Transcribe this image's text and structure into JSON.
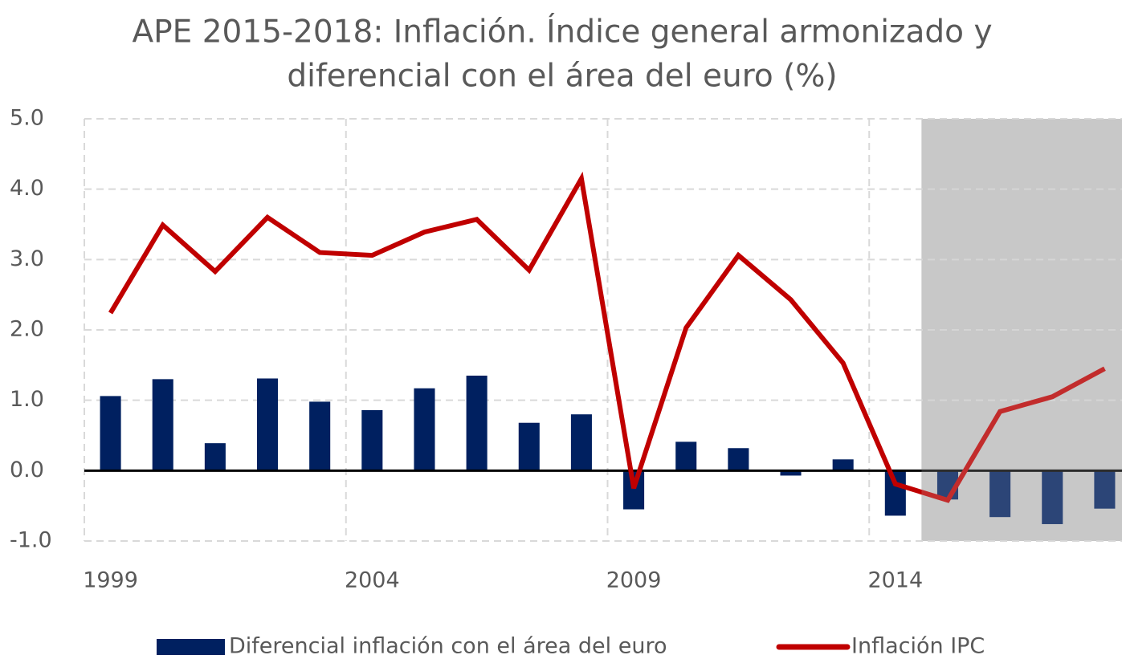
{
  "chart_data": {
    "type": "bar-line",
    "title": [
      "APE 2015-2018: Inflación. Índice general armonizado y",
      "diferencial con el área del euro (%)"
    ],
    "x": [
      1999,
      2000,
      2001,
      2002,
      2003,
      2004,
      2005,
      2006,
      2007,
      2008,
      2009,
      2010,
      2011,
      2012,
      2013,
      2014,
      2015,
      2016,
      2017,
      2018
    ],
    "series": [
      {
        "name": "Diferencial inflación con el área del euro",
        "type": "bar",
        "color": "#002060",
        "values": [
          1.06,
          1.3,
          0.39,
          1.31,
          0.98,
          0.86,
          1.17,
          1.35,
          0.68,
          0.8,
          -0.55,
          0.41,
          0.32,
          -0.07,
          0.16,
          -0.64,
          -0.41,
          -0.66,
          -0.76,
          -0.54
        ]
      },
      {
        "name": "Inflación IPC",
        "type": "line",
        "color": "#c00000",
        "values": [
          2.24,
          3.49,
          2.83,
          3.6,
          3.1,
          3.06,
          3.39,
          3.57,
          2.85,
          4.15,
          -0.25,
          2.03,
          3.06,
          2.43,
          1.53,
          -0.19,
          -0.42,
          0.84,
          1.05,
          1.45
        ]
      }
    ],
    "xlim": [
      1998.5,
      2018.5
    ],
    "xticks": [
      1999,
      2004,
      2009,
      2014
    ],
    "ylim": [
      -1,
      5
    ],
    "yticks": [
      {
        "value": -1,
        "label": "-1.0"
      },
      {
        "value": 0,
        "label": "0.0"
      },
      {
        "value": 1,
        "label": "1.0"
      },
      {
        "value": 2,
        "label": "2.0"
      },
      {
        "value": 3,
        "label": "3.0"
      },
      {
        "value": 4,
        "label": "4.0"
      },
      {
        "value": 5,
        "label": "5.0"
      }
    ],
    "grid": true,
    "shade": {
      "from": 2014.5,
      "to": 2018.5,
      "color": "#c8c8c8"
    },
    "legend": "bottom"
  }
}
